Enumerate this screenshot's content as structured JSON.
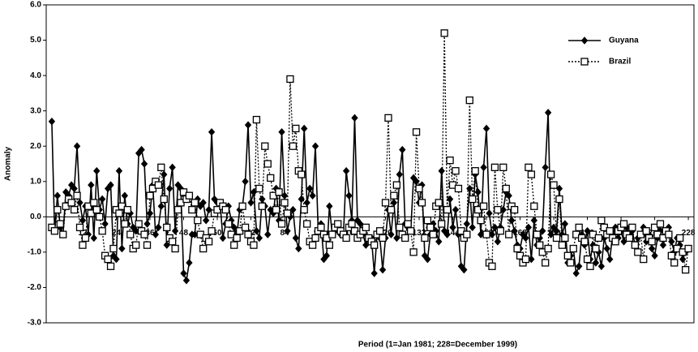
{
  "chart_data": {
    "type": "line",
    "y_label": "Anomaly",
    "x_label": "Period (1=Jan 1981; 228=December 1999)",
    "x": [
      1,
      2,
      3,
      4,
      5,
      6,
      7,
      8,
      9,
      10,
      11,
      12,
      13,
      14,
      15,
      16,
      17,
      18,
      19,
      20,
      21,
      22,
      23,
      24,
      25,
      26,
      27,
      28,
      29,
      30,
      31,
      32,
      33,
      34,
      35,
      36,
      37,
      38,
      39,
      40,
      41,
      42,
      43,
      44,
      45,
      46,
      47,
      48,
      49,
      50,
      51,
      52,
      53,
      54,
      55,
      56,
      57,
      58,
      59,
      60,
      61,
      62,
      63,
      64,
      65,
      66,
      67,
      68,
      69,
      70,
      71,
      72,
      73,
      74,
      75,
      76,
      77,
      78,
      79,
      80,
      81,
      82,
      83,
      84,
      85,
      86,
      87,
      88,
      89,
      90,
      91,
      92,
      93,
      94,
      95,
      96,
      97,
      98,
      99,
      100,
      101,
      102,
      103,
      104,
      105,
      106,
      107,
      108,
      109,
      110,
      111,
      112,
      113,
      114,
      115,
      116,
      117,
      118,
      119,
      120,
      121,
      122,
      123,
      124,
      125,
      126,
      127,
      128,
      129,
      130,
      131,
      132,
      133,
      134,
      135,
      136,
      137,
      138,
      139,
      140,
      141,
      142,
      143,
      144,
      145,
      146,
      147,
      148,
      149,
      150,
      151,
      152,
      153,
      154,
      155,
      156,
      157,
      158,
      159,
      160,
      161,
      162,
      163,
      164,
      165,
      166,
      167,
      168,
      169,
      170,
      171,
      172,
      173,
      174,
      175,
      176,
      177,
      178,
      179,
      180,
      181,
      182,
      183,
      184,
      185,
      186,
      187,
      188,
      189,
      190,
      191,
      192,
      193,
      194,
      195,
      196,
      197,
      198,
      199,
      200,
      201,
      202,
      203,
      204,
      205,
      206,
      207,
      208,
      209,
      210,
      211,
      212,
      213,
      214,
      215,
      216,
      217,
      218,
      219,
      220,
      221,
      222,
      223,
      224,
      225,
      226,
      227,
      228
    ],
    "series": [
      {
        "name": "Guyana",
        "color": "#000000",
        "marker": "diamond",
        "dashed": false,
        "values": [
          2.7,
          -0.4,
          0.6,
          -0.3,
          -0.5,
          0.7,
          0.6,
          0.9,
          0.8,
          2.0,
          0.4,
          -0.1,
          0.3,
          -0.5,
          0.9,
          -0.6,
          1.3,
          0.2,
          0.5,
          -0.2,
          0.8,
          0.9,
          -1.1,
          -1.2,
          1.3,
          -0.9,
          0.6,
          -0.2,
          0.1,
          -0.3,
          -0.4,
          1.8,
          1.9,
          1.5,
          -0.2,
          0.1,
          0.9,
          -0.5,
          -0.3,
          0.3,
          1.2,
          -0.8,
          0.8,
          1.4,
          -0.4,
          0.9,
          0.8,
          -1.6,
          -1.8,
          -1.3,
          -0.5,
          -0.5,
          0.5,
          0.3,
          0.4,
          -0.1,
          0.2,
          2.4,
          0.5,
          0.4,
          0.4,
          -0.6,
          -0.2,
          0.3,
          -0.1,
          -0.3,
          -0.5,
          0.2,
          0.3,
          1.0,
          2.6,
          0.4,
          0.7,
          -0.4,
          -0.6,
          0.5,
          0.3,
          -0.5,
          0.2,
          0.1,
          0.8,
          -0.1,
          2.4,
          0.6,
          -0.4,
          0.0,
          0.2,
          -0.6,
          -0.9,
          0.5,
          2.5,
          0.4,
          0.8,
          0.6,
          2.0,
          -0.4,
          -0.2,
          -1.2,
          -1.1,
          0.3,
          -0.5,
          -0.3,
          -0.4,
          -0.5,
          -0.5,
          1.3,
          0.6,
          -0.1,
          2.8,
          -0.1,
          -0.2,
          -0.5,
          -0.8,
          -0.6,
          -0.6,
          -1.6,
          -0.5,
          -0.6,
          -1.5,
          -0.6,
          0.2,
          -0.5,
          0.4,
          -0.6,
          1.2,
          1.9,
          -0.2,
          -0.3,
          -0.4,
          1.1,
          1.0,
          0.4,
          0.9,
          -1.1,
          -1.2,
          -0.5,
          -0.2,
          -0.4,
          -0.7,
          1.3,
          -0.4,
          -0.5,
          0.5,
          -0.3,
          0.2,
          -0.5,
          -1.4,
          -1.5,
          -0.2,
          0.8,
          -0.3,
          1.2,
          0.7,
          -0.5,
          1.4,
          2.5,
          0.1,
          -0.5,
          -0.3,
          -0.7,
          -0.3,
          0.2,
          0.7,
          0.6,
          -0.1,
          -0.4,
          -0.8,
          -0.9,
          -0.5,
          -0.6,
          -0.3,
          -1.2,
          -0.1,
          -0.8,
          -0.6,
          -0.4,
          1.4,
          2.95,
          -0.5,
          -0.3,
          -0.4,
          0.8,
          -0.5,
          -0.2,
          -1.3,
          -1.1,
          -0.9,
          -1.6,
          -1.4,
          -0.5,
          -0.8,
          -0.4,
          -1.2,
          -0.8,
          -1.3,
          -1.0,
          -1.4,
          -0.6,
          -0.9,
          -1.2,
          -0.5,
          -0.3,
          -0.6,
          -0.4,
          -0.7,
          -0.3,
          -0.5,
          -0.4,
          -0.8,
          -0.6,
          -0.5,
          -0.3,
          -0.7,
          -0.5,
          -0.9,
          -1.1,
          -0.6,
          -0.4,
          -0.8,
          -0.5,
          -0.3,
          -0.7,
          -1.0,
          -0.6,
          -0.8,
          -1.2,
          -1.0,
          -0.9
        ]
      },
      {
        "name": "Brazil",
        "color": "#000000",
        "marker": "square",
        "dashed": true,
        "values": [
          -0.3,
          -0.4,
          0.2,
          -0.2,
          -0.5,
          0.3,
          0.5,
          0.4,
          0.2,
          0.6,
          -0.3,
          -0.8,
          -0.6,
          0.3,
          0.1,
          0.4,
          0.2,
          0.0,
          -0.4,
          -1.1,
          -1.2,
          -1.4,
          -0.9,
          0.2,
          0.1,
          0.3,
          -0.2,
          0.2,
          -0.5,
          -0.9,
          -0.8,
          -0.2,
          -0.4,
          -0.5,
          -0.8,
          0.6,
          0.8,
          1.0,
          0.9,
          1.4,
          0.5,
          -0.3,
          -0.6,
          -0.7,
          -0.9,
          0.2,
          0.4,
          0.7,
          0.5,
          0.6,
          0.2,
          0.4,
          -0.1,
          -0.5,
          -0.9,
          -0.6,
          -0.7,
          -0.4,
          0.1,
          0.2,
          0.4,
          0.3,
          0.2,
          -0.2,
          -0.5,
          -0.8,
          -0.6,
          -0.4,
          0.3,
          -0.3,
          -0.5,
          -0.7,
          -0.8,
          2.75,
          0.8,
          0.3,
          2.0,
          1.5,
          1.1,
          0.6,
          0.2,
          0.7,
          -0.2,
          0.4,
          0.1,
          3.9,
          2.0,
          2.5,
          1.3,
          1.2,
          0.2,
          -0.2,
          -0.7,
          -0.8,
          -0.6,
          -0.4,
          -0.3,
          -0.5,
          -0.6,
          -0.8,
          -0.5,
          -0.3,
          -0.2,
          -0.4,
          -0.5,
          -0.6,
          -0.3,
          -0.2,
          -0.4,
          -0.6,
          -0.5,
          -0.4,
          -0.3,
          -0.6,
          -0.7,
          -0.8,
          -0.5,
          -0.4,
          -0.6,
          0.4,
          2.8,
          0.2,
          0.6,
          0.9,
          -0.3,
          -0.5,
          -0.6,
          -0.2,
          -0.4,
          -1.0,
          2.4,
          0.8,
          0.4,
          -0.6,
          -0.1,
          -0.3,
          -0.5,
          0.3,
          0.4,
          -0.2,
          5.2,
          0.2,
          1.6,
          0.9,
          1.3,
          0.8,
          -0.4,
          -0.6,
          -0.5,
          3.3,
          0.5,
          1.3,
          0.2,
          -0.1,
          0.3,
          -0.5,
          -1.3,
          -1.4,
          1.4,
          0.2,
          -0.4,
          1.4,
          0.8,
          -0.5,
          0.3,
          0.2,
          -0.9,
          -1.1,
          -1.3,
          -1.2,
          1.4,
          1.2,
          0.3,
          -0.5,
          -0.8,
          -1.0,
          -1.3,
          -0.9,
          1.2,
          0.9,
          -0.6,
          0.5,
          -0.8,
          -0.6,
          -1.1,
          -1.3,
          -0.9,
          -0.5,
          -0.3,
          -0.6,
          -0.7,
          -1.2,
          -1.4,
          -0.5,
          -0.9,
          -0.6,
          -0.1,
          -0.3,
          -0.5,
          -0.4,
          -0.6,
          -0.7,
          -0.4,
          -0.3,
          -0.2,
          -0.5,
          -0.6,
          -0.3,
          -0.8,
          -1.0,
          -0.5,
          -1.2,
          -0.4,
          -0.6,
          -0.7,
          -0.3,
          -0.5,
          -0.2,
          -0.6,
          -0.4,
          -0.5,
          -1.1,
          -1.3,
          -0.9,
          -0.6,
          -1.0,
          -1.5,
          -0.9
        ]
      }
    ],
    "xlim": [
      -1,
      230
    ],
    "xticks": [
      12,
      24,
      36,
      48,
      60,
      72,
      84,
      96,
      108,
      120,
      132,
      144,
      156,
      168,
      180,
      192,
      204,
      216,
      228
    ],
    "ylim": [
      -3,
      6
    ],
    "yticks": [
      {
        "value": -3,
        "label": "-3.0"
      },
      {
        "value": -2,
        "label": "-2.0"
      },
      {
        "value": -1,
        "label": "-1.0"
      },
      {
        "value": 0,
        "label": "0.0"
      },
      {
        "value": 1,
        "label": "1.0"
      },
      {
        "value": 2,
        "label": "2.0"
      },
      {
        "value": 3,
        "label": "3.0"
      },
      {
        "value": 4,
        "label": "4.0"
      },
      {
        "value": 5,
        "label": "5.0"
      },
      {
        "value": 6,
        "label": "6.0"
      }
    ],
    "legend": "top-right"
  }
}
